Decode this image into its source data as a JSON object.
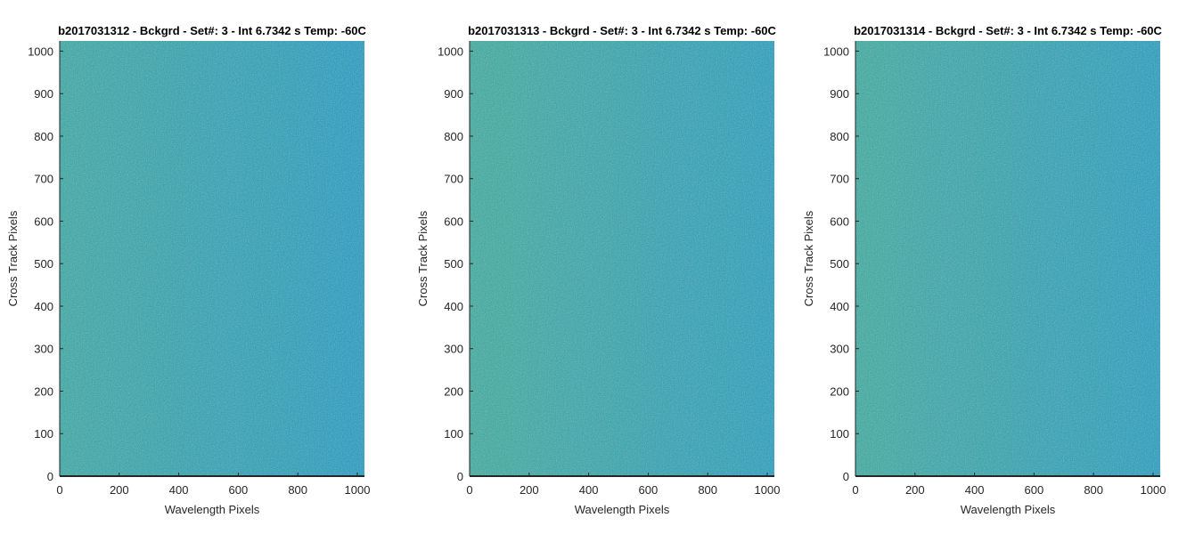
{
  "chart_data": [
    {
      "type": "heatmap",
      "title": "b2017031312 - Bckgrd - Set#: 3 - Int 6.7342 s Temp: -60C",
      "xlabel": "Wavelength Pixels",
      "ylabel": "Cross Track Pixels",
      "xlim": [
        0,
        1024
      ],
      "ylim": [
        0,
        1024
      ],
      "xticks": [
        0,
        200,
        400,
        600,
        800,
        1000
      ],
      "yticks": [
        0,
        100,
        200,
        300,
        400,
        500,
        600,
        700,
        800,
        900,
        1000
      ],
      "grid": false,
      "colors": {
        "left": "#2aa8a3",
        "right": "#1499c4",
        "noise": "#58b98c"
      }
    },
    {
      "type": "heatmap",
      "title": "b2017031313 - Bckgrd - Set#: 3 - Int 6.7342 s Temp: -60C",
      "xlabel": "Wavelength Pixels",
      "ylabel": "Cross Track Pixels",
      "xlim": [
        0,
        1024
      ],
      "ylim": [
        0,
        1024
      ],
      "xticks": [
        0,
        200,
        400,
        600,
        800,
        1000
      ],
      "yticks": [
        0,
        100,
        200,
        300,
        400,
        500,
        600,
        700,
        800,
        900,
        1000
      ],
      "grid": false,
      "colors": {
        "left": "#30ab9c",
        "right": "#179cc0",
        "noise": "#62bc84"
      }
    },
    {
      "type": "heatmap",
      "title": "b2017031314 - Bckgrd - Set#: 3 - Int 6.7342 s Temp: -60C",
      "xlabel": "Wavelength Pixels",
      "ylabel": "Cross Track Pixels",
      "xlim": [
        0,
        1024
      ],
      "ylim": [
        0,
        1024
      ],
      "xticks": [
        0,
        200,
        400,
        600,
        800,
        1000
      ],
      "yticks": [
        0,
        100,
        200,
        300,
        400,
        500,
        600,
        700,
        800,
        900,
        1000
      ],
      "grid": false,
      "colors": {
        "left": "#2eaa9e",
        "right": "#169bc2",
        "noise": "#60bb86"
      }
    }
  ]
}
